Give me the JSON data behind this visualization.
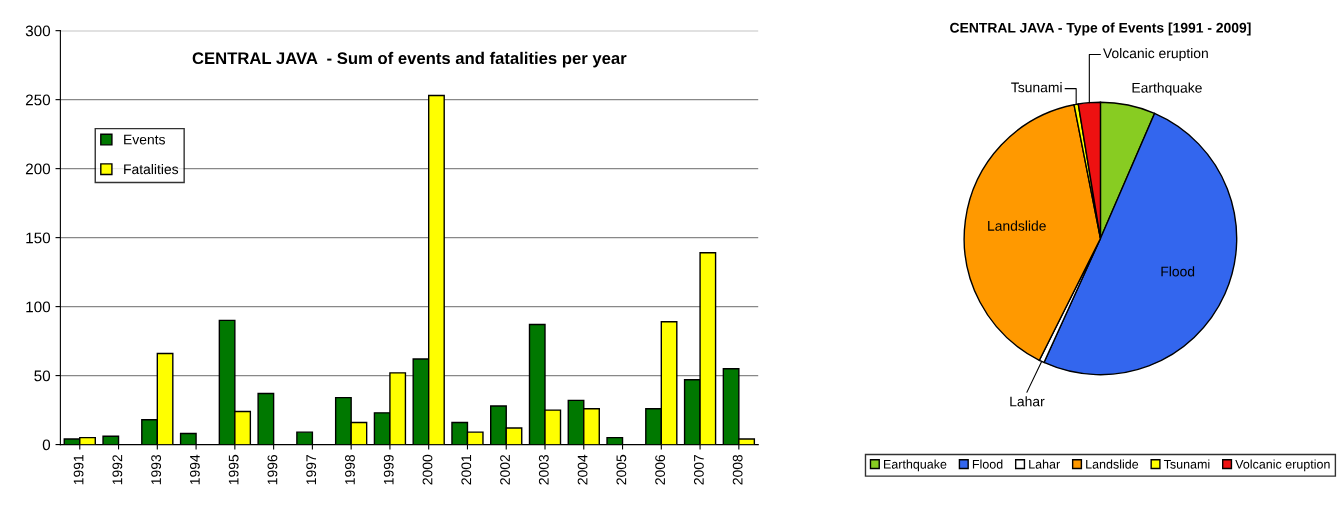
{
  "chart_data": [
    {
      "type": "bar",
      "title": "CENTRAL JAVA  - Sum of events and fatalities per year",
      "categories": [
        "1991",
        "1992",
        "1993",
        "1994",
        "1995",
        "1996",
        "1997",
        "1998",
        "1999",
        "2000",
        "2001",
        "2002",
        "2003",
        "2004",
        "2005",
        "2006",
        "2007",
        "2008"
      ],
      "series": [
        {
          "name": "Events",
          "color": "#007800",
          "values": [
            4,
            6,
            18,
            8,
            90,
            37,
            9,
            34,
            23,
            62,
            16,
            28,
            87,
            32,
            5,
            26,
            47,
            55
          ]
        },
        {
          "name": "Fatalities",
          "color": "#ffff00",
          "values": [
            5,
            0,
            66,
            0,
            24,
            0,
            0,
            16,
            52,
            253,
            9,
            12,
            25,
            26,
            0,
            89,
            139,
            4
          ]
        }
      ],
      "ylim": [
        0,
        300
      ],
      "yticks": [
        0,
        50,
        100,
        150,
        200,
        250,
        300
      ],
      "grid": "y",
      "legend": "top left"
    },
    {
      "type": "pie",
      "title": "CENTRAL JAVA - Type of Events [1991 - 2009]",
      "categories": [
        "Earthquake",
        "Flood",
        "Lahar",
        "Landslide",
        "Tsunami",
        "Volcanic eruption"
      ],
      "values": [
        6.5,
        50.3,
        0.6,
        39.5,
        0.5,
        2.6
      ],
      "colors": [
        "#88cc22",
        "#3366ee",
        "#ffffff",
        "#ff9900",
        "#ffff00",
        "#ee1111"
      ],
      "legend": "bottom"
    }
  ]
}
